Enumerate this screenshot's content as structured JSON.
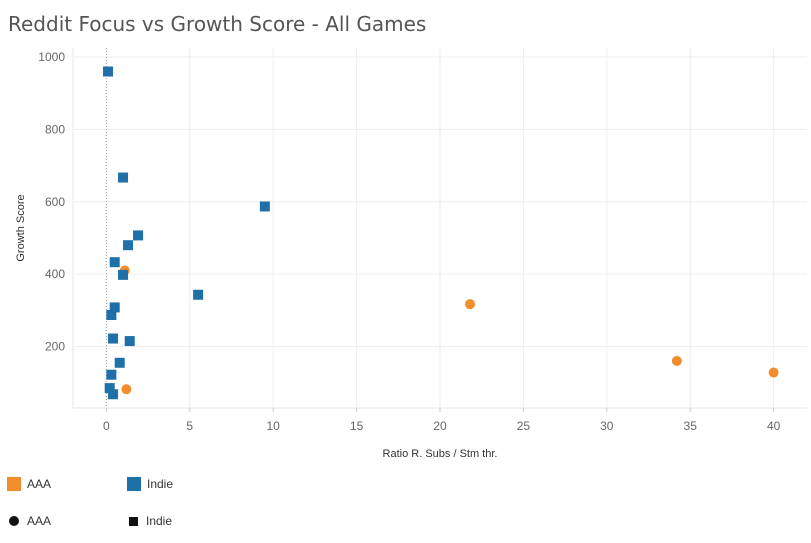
{
  "chart_data": {
    "type": "scatter",
    "title": "Reddit Focus vs Growth Score - All Games",
    "xlabel": "Ratio R. Subs / Stm thr.",
    "ylabel": "Growth Score",
    "xlim": [
      -2,
      42
    ],
    "ylim": [
      30,
      1025
    ],
    "xticks": [
      0,
      5,
      10,
      15,
      20,
      25,
      30,
      35,
      40
    ],
    "yticks": [
      200,
      400,
      600,
      800,
      1000
    ],
    "series": [
      {
        "name": "AAA",
        "color": "#f28e2b",
        "shape": "circle",
        "points": [
          {
            "x": 1.1,
            "y": 410
          },
          {
            "x": 1.2,
            "y": 82
          },
          {
            "x": 21.8,
            "y": 317
          },
          {
            "x": 34.2,
            "y": 160
          },
          {
            "x": 40.0,
            "y": 128
          }
        ]
      },
      {
        "name": "Indie",
        "color": "#1f6fa8",
        "shape": "square",
        "points": [
          {
            "x": 0.1,
            "y": 960
          },
          {
            "x": 1.0,
            "y": 667
          },
          {
            "x": 9.5,
            "y": 587
          },
          {
            "x": 1.9,
            "y": 507
          },
          {
            "x": 1.3,
            "y": 480
          },
          {
            "x": 0.5,
            "y": 433
          },
          {
            "x": 1.0,
            "y": 398
          },
          {
            "x": 5.5,
            "y": 343
          },
          {
            "x": 0.5,
            "y": 308
          },
          {
            "x": 0.3,
            "y": 287
          },
          {
            "x": 0.4,
            "y": 222
          },
          {
            "x": 1.4,
            "y": 215
          },
          {
            "x": 0.8,
            "y": 155
          },
          {
            "x": 0.3,
            "y": 122
          },
          {
            "x": 0.2,
            "y": 85
          },
          {
            "x": 0.4,
            "y": 68
          }
        ]
      }
    ]
  },
  "legend": {
    "color": {
      "aaa_label": "AAA",
      "indie_label": "Indie",
      "aaa_color": "#f28e2b",
      "indie_color": "#1f6fa8"
    },
    "shape": {
      "aaa_label": "AAA",
      "indie_label": "Indie"
    }
  }
}
